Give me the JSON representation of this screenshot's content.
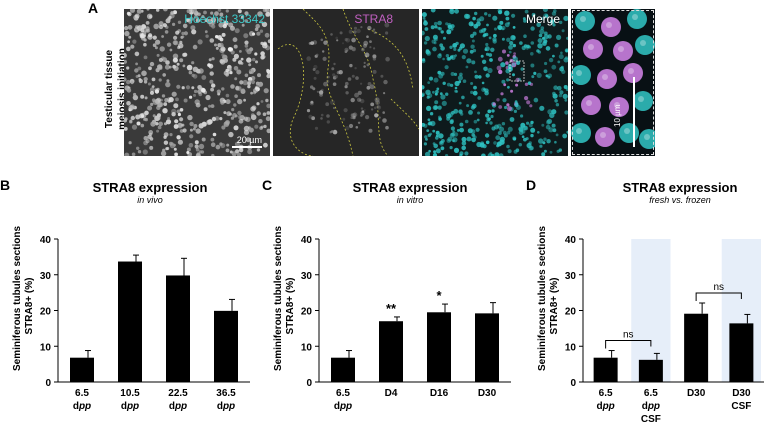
{
  "panel_a": {
    "letter": "A",
    "side_label": [
      "Testicular tissue",
      "meiosis initiation"
    ],
    "images": [
      {
        "label": "Hoechst 33342",
        "color": "#3cc8c8"
      },
      {
        "label": "STRA8",
        "color": "#c060c0"
      },
      {
        "label": "Merge",
        "color": "#ffffff"
      }
    ],
    "scale_bar": "20 µm",
    "zoom_scale_bar": "10 µm"
  },
  "chart_data": [
    {
      "panel": "B",
      "type": "bar",
      "title": "STRA8 expression",
      "subtitle": "in vivo",
      "ylabel": [
        "Seminiferous tubules sections",
        "STRA8+ (%)"
      ],
      "ylim": [
        0,
        40
      ],
      "yticks": [
        0,
        10,
        20,
        30,
        40
      ],
      "categories": [
        [
          "6.5",
          "dpp"
        ],
        [
          "10.5",
          "dpp"
        ],
        [
          "22.5",
          "dpp"
        ],
        [
          "36.5",
          "dpp"
        ]
      ],
      "values": [
        6.8,
        33.7,
        29.8,
        19.9
      ],
      "errors": [
        2.0,
        1.8,
        4.8,
        3.2
      ],
      "annotations": [
        "",
        "",
        "",
        ""
      ],
      "shaded": [
        false,
        false,
        false,
        false
      ]
    },
    {
      "panel": "C",
      "type": "bar",
      "title": "STRA8 expression",
      "subtitle": "in vitro",
      "ylabel": [
        "Seminiferous tubules sections",
        "STRA8+ (%)"
      ],
      "ylim": [
        0,
        40
      ],
      "yticks": [
        0,
        10,
        20,
        30,
        40
      ],
      "categories": [
        [
          "6.5",
          "dpp"
        ],
        [
          "D4"
        ],
        [
          "D16"
        ],
        [
          "D30"
        ]
      ],
      "values": [
        6.8,
        17.0,
        19.5,
        19.2
      ],
      "errors": [
        2.0,
        1.2,
        2.3,
        3.0
      ],
      "annotations": [
        "",
        "**",
        "*",
        ""
      ],
      "shaded": [
        false,
        false,
        false,
        false
      ]
    },
    {
      "panel": "D",
      "type": "bar",
      "title": "STRA8 expression",
      "subtitle": "fresh vs. frozen",
      "ylabel": [
        "Seminiferous tubules sections",
        "STRA8+ (%)"
      ],
      "ylim": [
        0,
        40
      ],
      "yticks": [
        0,
        10,
        20,
        30,
        40
      ],
      "categories": [
        [
          "6.5",
          "dpp"
        ],
        [
          "6.5",
          "dpp",
          "CSF"
        ],
        [
          "D30"
        ],
        [
          "D30",
          "CSF"
        ]
      ],
      "values": [
        6.8,
        6.2,
        19.1,
        16.4
      ],
      "errors": [
        2.0,
        1.8,
        3.0,
        2.5
      ],
      "annotations": [
        "",
        "",
        "",
        ""
      ],
      "shaded": [
        false,
        true,
        false,
        true
      ],
      "comparisons": [
        {
          "from": 0,
          "to": 1,
          "label": "ns"
        },
        {
          "from": 2,
          "to": 3,
          "label": "ns"
        }
      ]
    }
  ]
}
